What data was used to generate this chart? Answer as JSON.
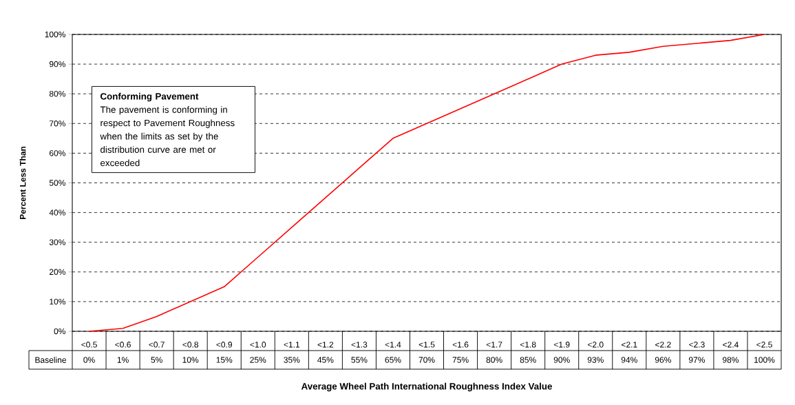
{
  "chart_data": {
    "type": "line",
    "xlabel": "Average Wheel Path International Roughness Index Value",
    "ylabel": "Percent Less Than",
    "categories": [
      "<0.5",
      "<0.6",
      "<0.7",
      "<0.8",
      "<0.9",
      "<1.0",
      "<1.1",
      "<1.2",
      "<1.3",
      "<1.4",
      "<1.5",
      "<1.6",
      "<1.7",
      "<1.8",
      "<1.9",
      "<2.0",
      "<2.1",
      "<2.2",
      "<2.3",
      "<2.4",
      "<2.5"
    ],
    "series": [
      {
        "name": "Baseline",
        "color": "#ff0000",
        "values": [
          0,
          1,
          5,
          10,
          15,
          25,
          35,
          45,
          55,
          65,
          70,
          75,
          80,
          85,
          90,
          93,
          94,
          96,
          97,
          98,
          100
        ],
        "value_labels": [
          "0%",
          "1%",
          "5%",
          "10%",
          "15%",
          "25%",
          "35%",
          "45%",
          "55%",
          "65%",
          "70%",
          "75%",
          "80%",
          "85%",
          "90%",
          "93%",
          "94%",
          "96%",
          "97%",
          "98%",
          "100%"
        ]
      }
    ],
    "ylim": [
      0,
      100
    ],
    "yticks": [
      {
        "value": 0,
        "label": "0%"
      },
      {
        "value": 10,
        "label": "10%"
      },
      {
        "value": 20,
        "label": "20%"
      },
      {
        "value": 30,
        "label": "30%"
      },
      {
        "value": 40,
        "label": "40%"
      },
      {
        "value": 50,
        "label": "50%"
      },
      {
        "value": 60,
        "label": "60%"
      },
      {
        "value": 70,
        "label": "70%"
      },
      {
        "value": 80,
        "label": "80%"
      },
      {
        "value": 90,
        "label": "90%"
      },
      {
        "value": 100,
        "label": "100%"
      }
    ],
    "grid": "y",
    "annotations": [
      "Conforming Pavement",
      "The pavement is conforming in respect to Pavement Roughness when the limits as set by the distribution curve are met or exceeded"
    ]
  }
}
